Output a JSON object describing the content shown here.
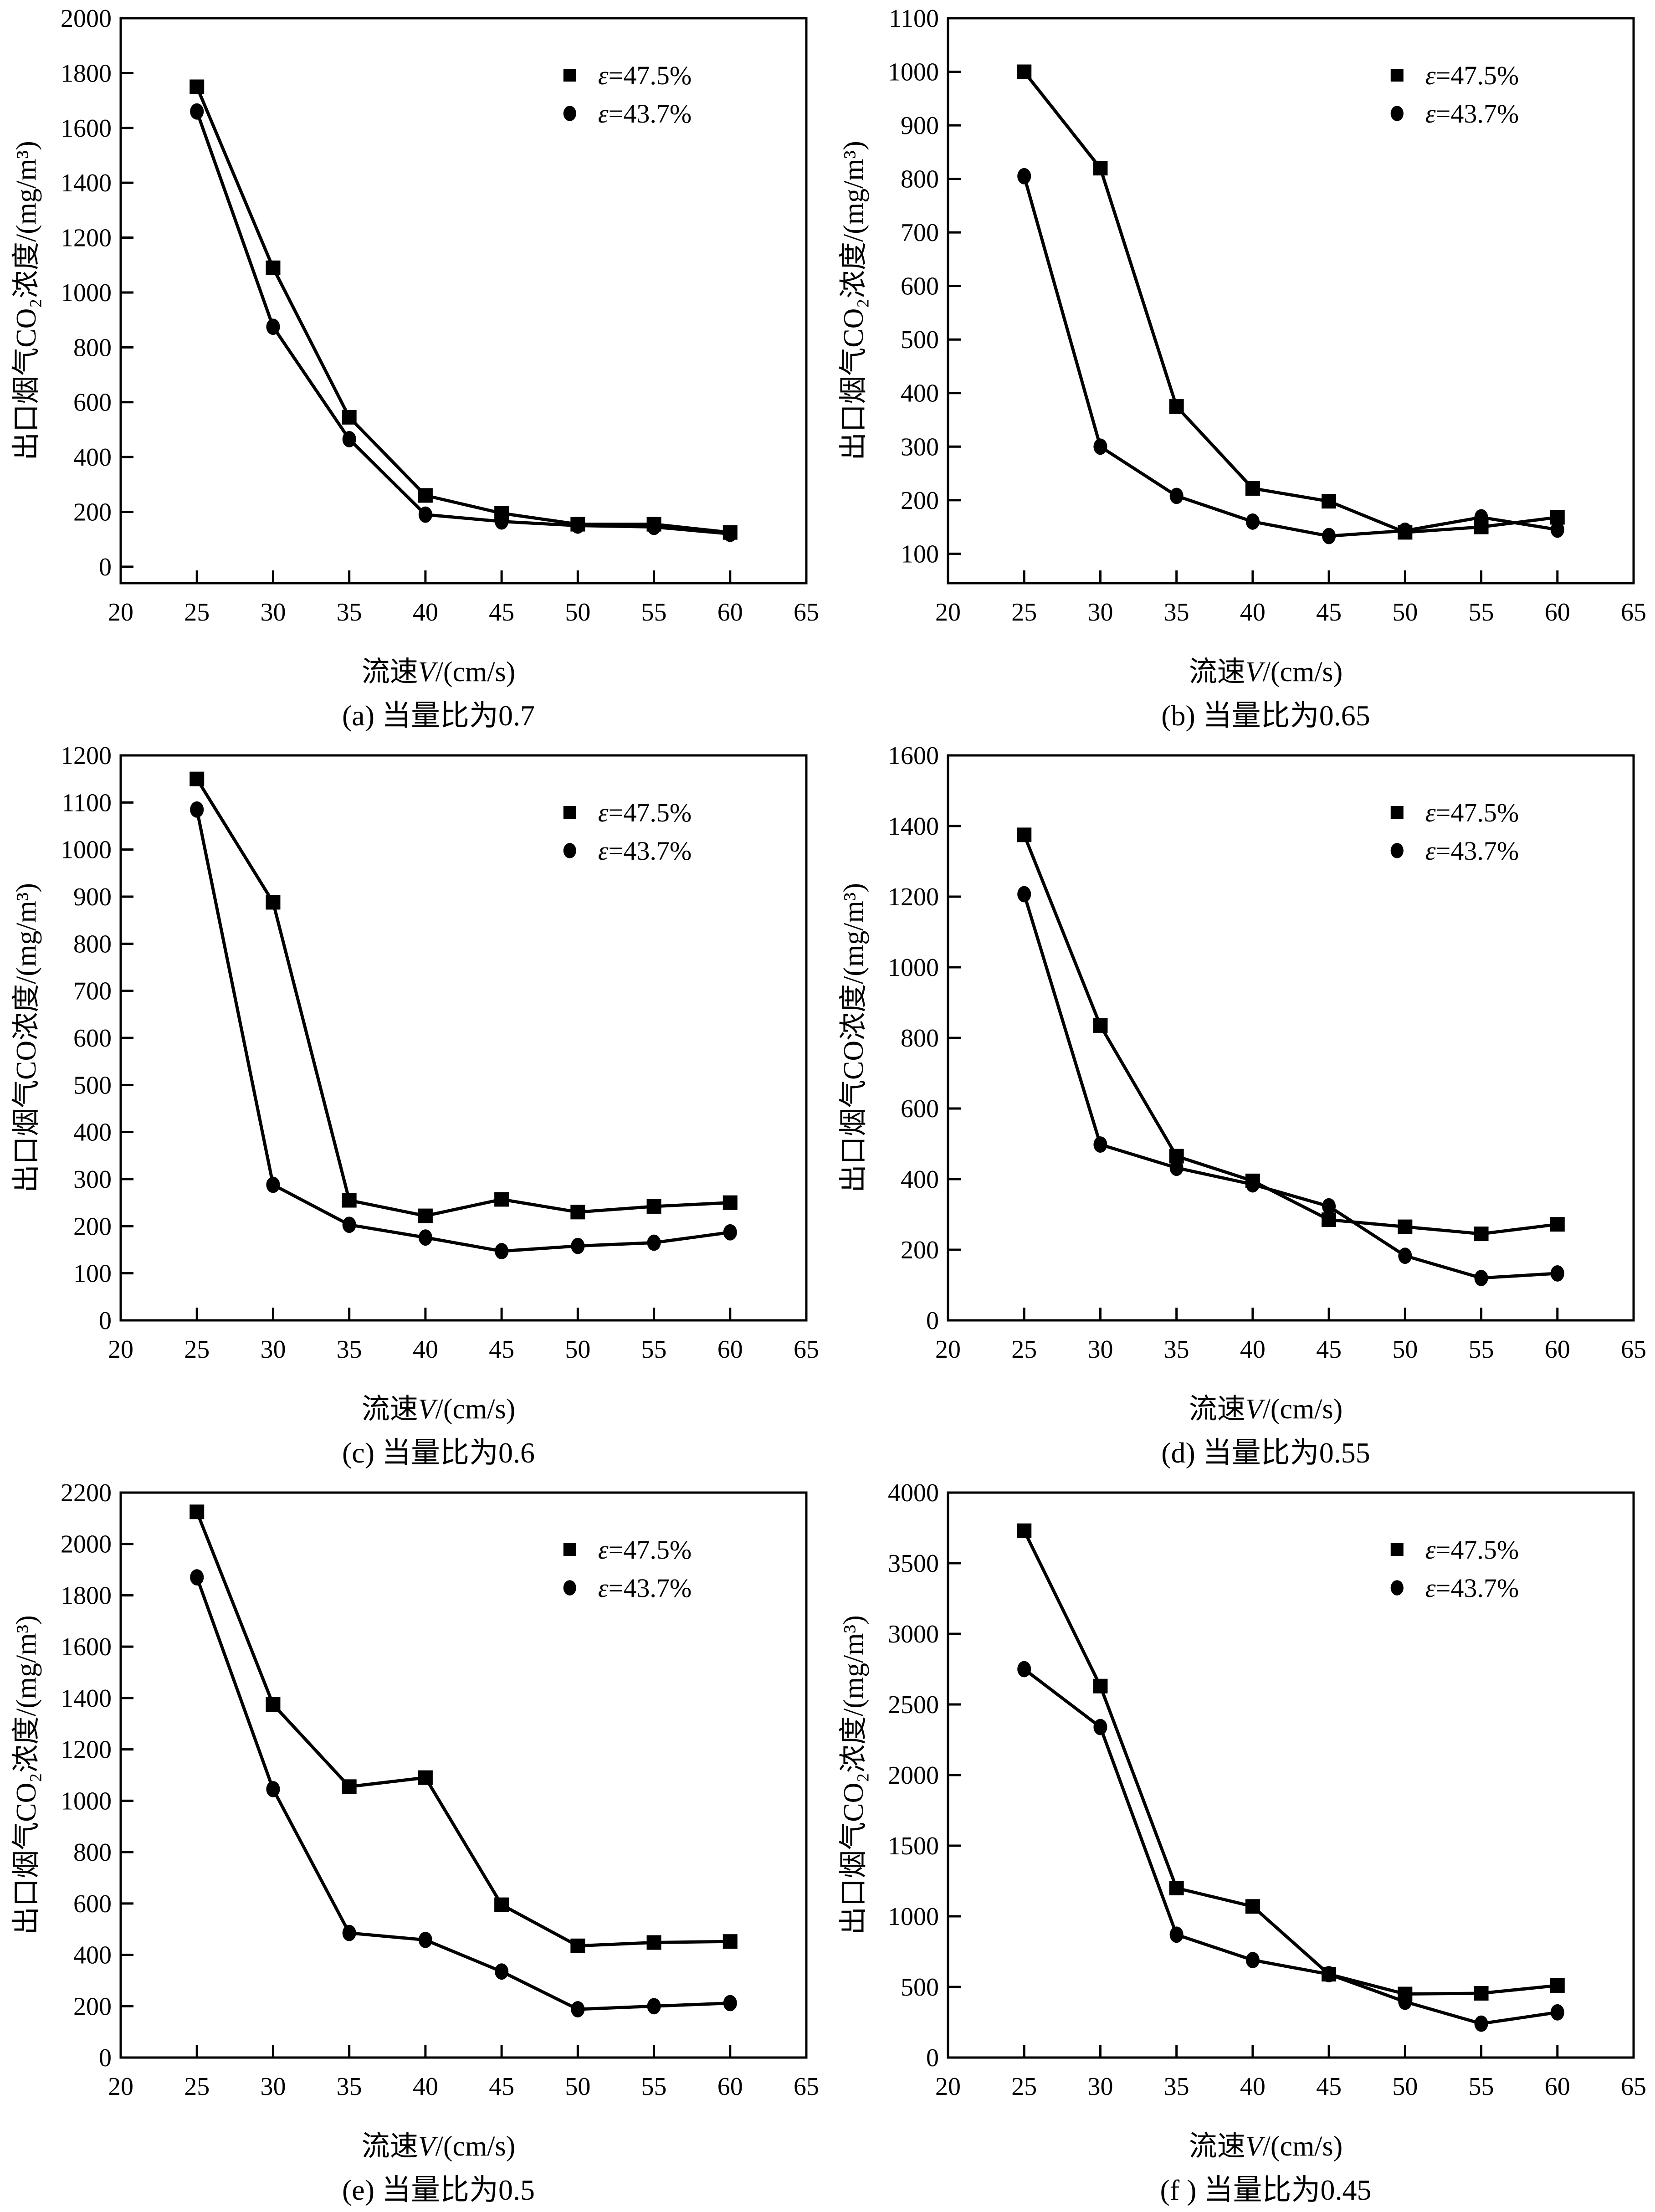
{
  "page": {
    "background": "#ffffff",
    "ink_color": "#000000"
  },
  "legend": {
    "entries": [
      {
        "marker": "square",
        "label": "ε=47.5%"
      },
      {
        "marker": "circle",
        "label": "ε=43.7%"
      }
    ]
  },
  "chart_data": [
    {
      "type": "line",
      "panel_id": "a",
      "caption": "(a) 当量比为0.7",
      "xlabel": "流速V/(cm/s)",
      "ylabel": "出口烟气CO₂浓度/(mg/m³)",
      "xlim": [
        20,
        65
      ],
      "ylim": [
        -60,
        2000
      ],
      "xticks": [
        20,
        25,
        30,
        35,
        40,
        45,
        50,
        55,
        60,
        65
      ],
      "yticks": [
        0,
        200,
        400,
        600,
        800,
        1000,
        1200,
        1400,
        1600,
        1800,
        2000
      ],
      "x": [
        25,
        30,
        35,
        40,
        45,
        50,
        55,
        60
      ],
      "series": [
        {
          "name": "ε=47.5%",
          "marker": "square",
          "values": [
            1750,
            1090,
            545,
            260,
            195,
            155,
            155,
            125
          ]
        },
        {
          "name": "ε=43.7%",
          "marker": "circle",
          "values": [
            1660,
            875,
            465,
            190,
            165,
            150,
            145,
            120
          ]
        }
      ],
      "legend_position": "top-right",
      "grid": false
    },
    {
      "type": "line",
      "panel_id": "b",
      "caption": "(b) 当量比为0.65",
      "xlabel": "流速V/(cm/s)",
      "ylabel": "出口烟气CO₂浓度/(mg/m³)",
      "xlim": [
        20,
        65
      ],
      "ylim": [
        45,
        1100
      ],
      "xticks": [
        20,
        25,
        30,
        35,
        40,
        45,
        50,
        55,
        60,
        65
      ],
      "yticks": [
        100,
        200,
        300,
        400,
        500,
        600,
        700,
        800,
        900,
        1000,
        1100
      ],
      "x": [
        25,
        30,
        35,
        40,
        45,
        50,
        55,
        60
      ],
      "series": [
        {
          "name": "ε=47.5%",
          "marker": "square",
          "values": [
            1000,
            820,
            375,
            222,
            198,
            140,
            150,
            168
          ]
        },
        {
          "name": "ε=43.7%",
          "marker": "circle",
          "values": [
            805,
            300,
            208,
            160,
            133,
            143,
            168,
            145
          ]
        }
      ],
      "legend_position": "top-right",
      "grid": false
    },
    {
      "type": "line",
      "panel_id": "c",
      "caption": "(c) 当量比为0.6",
      "xlabel": "流速V/(cm/s)",
      "ylabel": "出口烟气CO浓度/(mg/m³)",
      "xlim": [
        20,
        65
      ],
      "ylim": [
        0,
        1200
      ],
      "xticks": [
        20,
        25,
        30,
        35,
        40,
        45,
        50,
        55,
        60,
        65
      ],
      "yticks": [
        0,
        100,
        200,
        300,
        400,
        500,
        600,
        700,
        800,
        900,
        1000,
        1100,
        1200
      ],
      "x": [
        25,
        30,
        35,
        40,
        45,
        50,
        55,
        60
      ],
      "series": [
        {
          "name": "ε=47.5%",
          "marker": "square",
          "values": [
            1150,
            888,
            255,
            222,
            257,
            230,
            242,
            250
          ]
        },
        {
          "name": "ε=43.7%",
          "marker": "circle",
          "values": [
            1085,
            288,
            203,
            176,
            147,
            158,
            165,
            187
          ]
        }
      ],
      "legend_position": "top-right",
      "grid": false
    },
    {
      "type": "line",
      "panel_id": "d",
      "caption": "(d) 当量比为0.55",
      "xlabel": "流速V/(cm/s)",
      "ylabel": "出口烟气CO浓度/(mg/m³)",
      "xlim": [
        20,
        65
      ],
      "ylim": [
        0,
        1600
      ],
      "xticks": [
        20,
        25,
        30,
        35,
        40,
        45,
        50,
        55,
        60,
        65
      ],
      "yticks": [
        0,
        200,
        400,
        600,
        800,
        1000,
        1200,
        1400,
        1600
      ],
      "x": [
        25,
        30,
        35,
        40,
        45,
        50,
        55,
        60
      ],
      "series": [
        {
          "name": "ε=47.5%",
          "marker": "square",
          "values": [
            1375,
            835,
            465,
            395,
            285,
            265,
            245,
            272
          ]
        },
        {
          "name": "ε=43.7%",
          "marker": "circle",
          "values": [
            1207,
            498,
            432,
            385,
            323,
            183,
            120,
            133
          ]
        }
      ],
      "legend_position": "top-right",
      "grid": false
    },
    {
      "type": "line",
      "panel_id": "e",
      "caption": "(e) 当量比为0.5",
      "xlabel": "流速V/(cm/s)",
      "ylabel": "出口烟气CO₂浓度/(mg/m³)",
      "xlim": [
        20,
        65
      ],
      "ylim": [
        0,
        2200
      ],
      "xticks": [
        20,
        25,
        30,
        35,
        40,
        45,
        50,
        55,
        60,
        65
      ],
      "yticks": [
        0,
        200,
        400,
        600,
        800,
        1000,
        1200,
        1400,
        1600,
        1800,
        2000,
        2200
      ],
      "x": [
        25,
        30,
        35,
        40,
        45,
        50,
        55,
        60
      ],
      "series": [
        {
          "name": "ε=47.5%",
          "marker": "square",
          "values": [
            2125,
            1375,
            1055,
            1090,
            595,
            435,
            448,
            452
          ]
        },
        {
          "name": "ε=43.7%",
          "marker": "circle",
          "values": [
            1870,
            1045,
            485,
            458,
            335,
            188,
            200,
            212
          ]
        }
      ],
      "legend_position": "top-right",
      "grid": false
    },
    {
      "type": "line",
      "panel_id": "f",
      "caption": "(f ) 当量比为0.45",
      "xlabel": "流速V/(cm/s)",
      "ylabel": "出口烟气CO₂浓度/(mg/m³)",
      "xlim": [
        20,
        65
      ],
      "ylim": [
        0,
        4000
      ],
      "xticks": [
        20,
        25,
        30,
        35,
        40,
        45,
        50,
        55,
        60,
        65
      ],
      "yticks": [
        0,
        500,
        1000,
        1500,
        2000,
        2500,
        3000,
        3500,
        4000
      ],
      "x": [
        25,
        30,
        35,
        40,
        45,
        50,
        55,
        60
      ],
      "series": [
        {
          "name": "ε=47.5%",
          "marker": "square",
          "values": [
            3730,
            2630,
            1200,
            1070,
            590,
            450,
            455,
            510
          ]
        },
        {
          "name": "ε=43.7%",
          "marker": "circle",
          "values": [
            2750,
            2340,
            870,
            690,
            590,
            395,
            240,
            320
          ]
        }
      ],
      "legend_position": "top-right",
      "grid": false
    }
  ]
}
